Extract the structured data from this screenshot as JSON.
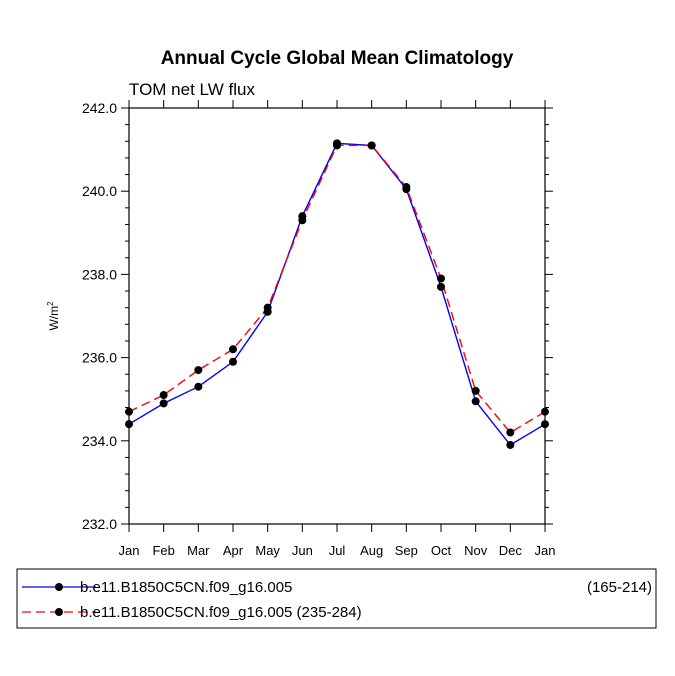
{
  "chart_data": {
    "type": "line",
    "title": "Annual Cycle Global Mean Climatology",
    "subtitle": "TOM net LW flux",
    "ylabel": "W/m",
    "ylabel_superscript": "2",
    "ylim": [
      232.0,
      242.0
    ],
    "yticks": [
      "232.0",
      "234.0",
      "236.0",
      "238.0",
      "240.0",
      "242.0"
    ],
    "categories": [
      "Jan",
      "Feb",
      "Mar",
      "Apr",
      "May",
      "Jun",
      "Jul",
      "Aug",
      "Sep",
      "Oct",
      "Nov",
      "Dec",
      "Jan"
    ],
    "series": [
      {
        "name": "b.e11.B1850C5CN.f09_g16.005",
        "range_label": "(165-214)",
        "color": "#0000ff",
        "dash": "solid",
        "values": [
          234.4,
          234.9,
          235.3,
          235.9,
          237.1,
          239.4,
          241.15,
          241.1,
          240.05,
          237.7,
          234.95,
          233.9,
          234.4
        ]
      },
      {
        "name": "b.e11.B1850C5CN.f09_g16.005 (235-284)",
        "color": "#ff0000",
        "dash": "dashed",
        "values": [
          234.7,
          235.1,
          235.7,
          236.2,
          237.2,
          239.3,
          241.1,
          241.1,
          240.1,
          237.9,
          235.2,
          234.2,
          234.7
        ]
      }
    ]
  }
}
